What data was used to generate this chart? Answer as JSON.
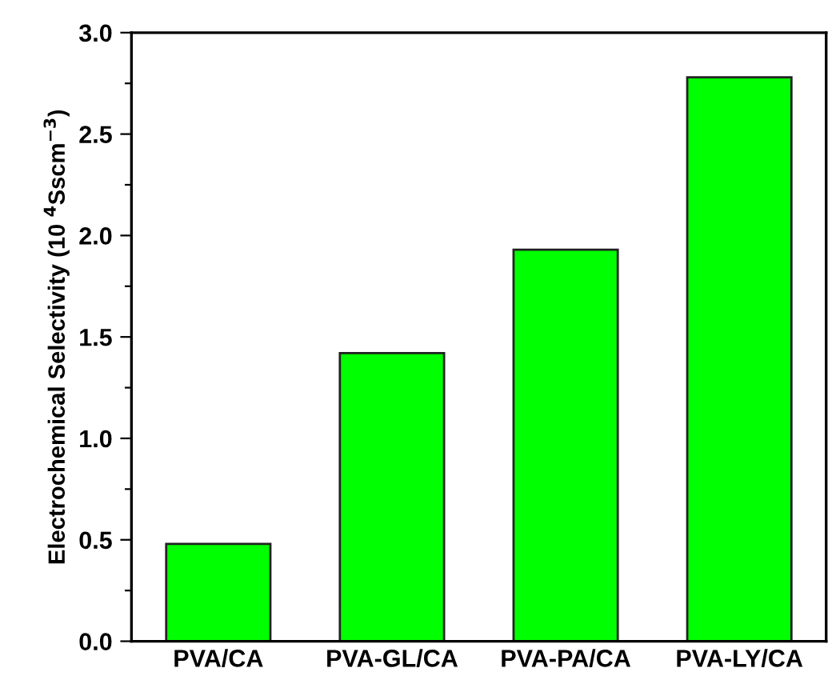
{
  "chart_data": {
    "type": "bar",
    "ylabel": "Electrochemical Selectivity (10 $^{4}$Sscm$^{−3}$)",
    "categories": [
      "PVA/CA",
      "PVA-GL/CA",
      "PVA-PA/CA",
      "PVA-LY/CA"
    ],
    "values": [
      0.48,
      1.42,
      1.93,
      2.78
    ],
    "color": "#00ff00",
    "ylim": [
      0,
      3.0
    ],
    "yticks": [
      {
        "value": 0,
        "label": "0.0"
      },
      {
        "value": 0.25,
        "label": null
      },
      0.5,
      {
        "value": 0.75,
        "label": null
      },
      {
        "value": 1,
        "label": "1.0"
      },
      {
        "value": 1.25,
        "label": null
      },
      1.5,
      {
        "value": 1.75,
        "label": null
      },
      {
        "value": 2,
        "label": "2.0"
      },
      {
        "value": 2.25,
        "label": null
      },
      2.5,
      {
        "value": 2.75,
        "label": null
      },
      {
        "value": 3,
        "label": "3.0"
      }
    ],
    "grid": false
  }
}
